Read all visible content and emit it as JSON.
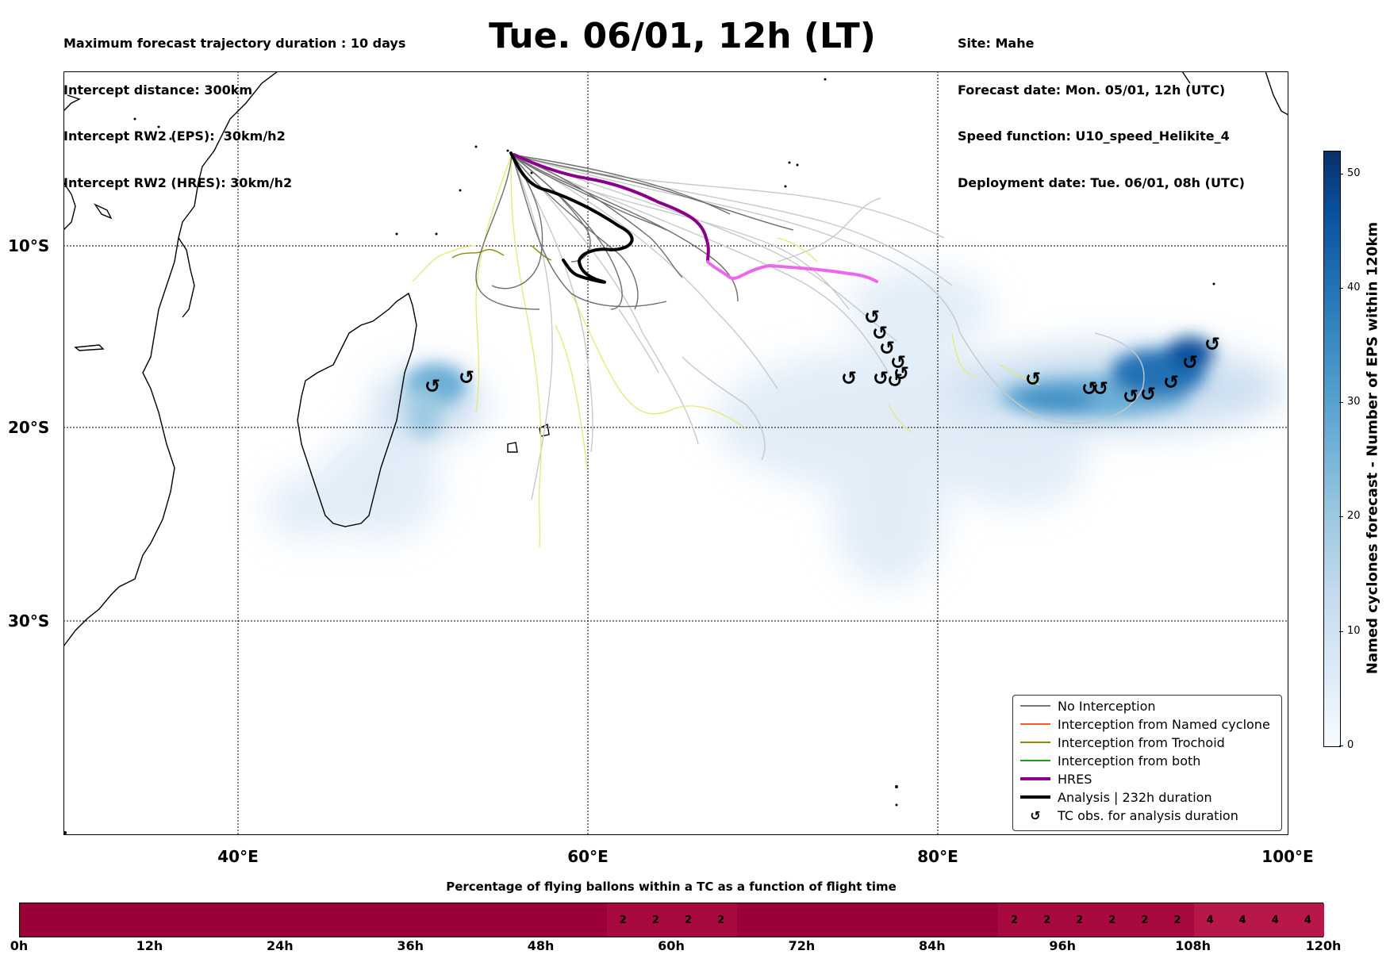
{
  "header": {
    "left_lines": [
      "Maximum forecast trajectory duration : 10 days",
      "Intercept distance: 300km",
      "Intercept RW2 (EPS):  30km/h2",
      "Intercept RW2 (HRES): 30km/h2"
    ],
    "title": "Tue. 06/01, 12h (LT)",
    "right_lines": [
      "Site: Mahe",
      "Forecast date: Mon. 05/01, 12h (UTC)",
      "Speed function: U10_speed_Helikite_4",
      "Deployment date: Tue. 06/01, 08h (UTC)"
    ]
  },
  "map": {
    "lat_labels": [
      "10°S",
      "20°S",
      "30°S"
    ],
    "lon_labels": [
      "40°E",
      "60°E",
      "80°E",
      "100°E"
    ],
    "colors": {
      "no_interception": "#777777",
      "named_cyclone": "#ff5a1f",
      "trochoid": "#8b8b00",
      "both": "#1a9e1a",
      "hres": "#8b008b",
      "hres_tail": "#ee66ee",
      "analysis": "#000000",
      "light_tracks": "#c8c8c8",
      "yellow_tracks": "#e8e870",
      "density": "#2171b5"
    }
  },
  "legend": {
    "items": [
      {
        "label": "No Interception",
        "icon": "line-gray"
      },
      {
        "label": "Interception from Named cyclone",
        "icon": "line-orange"
      },
      {
        "label": "Interception from Trochoid",
        "icon": "line-olive"
      },
      {
        "label": "Interception from both",
        "icon": "line-green"
      },
      {
        "label": "HRES",
        "icon": "line-purple-thick"
      },
      {
        "label": "Analysis | 232h duration",
        "icon": "line-black-thick"
      },
      {
        "label": "TC obs. for analysis duration",
        "icon": "cyclone-symbol"
      }
    ]
  },
  "colorbar": {
    "label": "Named cyclones forecast - Number of EPS within 120km",
    "ticks": [
      "0",
      "10",
      "20",
      "30",
      "40",
      "50"
    ],
    "range": [
      0,
      52
    ]
  },
  "timeline": {
    "title": "Percentage of flying ballons within a TC as a function of flight time",
    "ticks": [
      "0h",
      "12h",
      "24h",
      "36h",
      "48h",
      "60h",
      "72h",
      "84h",
      "96h",
      "108h",
      "120h"
    ],
    "segment_values": [
      {
        "from_h": 54,
        "to_h": 66,
        "labels": [
          "2",
          "2",
          "2",
          "2"
        ]
      },
      {
        "from_h": 90,
        "to_h": 108,
        "labels": [
          "2",
          "2",
          "2",
          "2",
          "2",
          "2"
        ]
      },
      {
        "from_h": 108,
        "to_h": 120,
        "labels": [
          "4",
          "4",
          "4",
          "4"
        ]
      }
    ]
  }
}
